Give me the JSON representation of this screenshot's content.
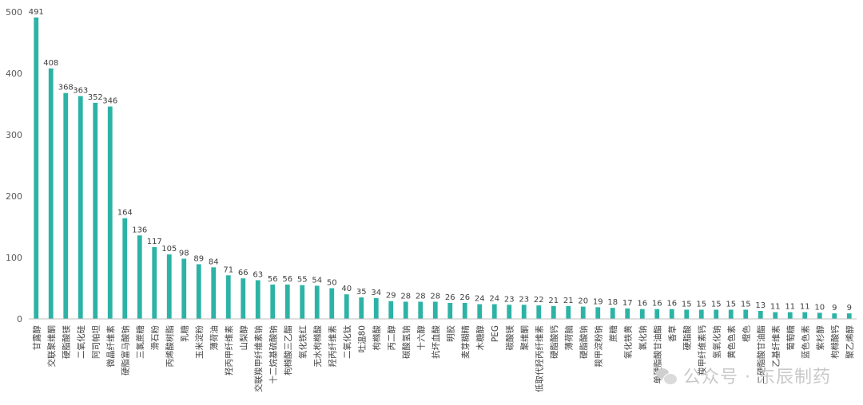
{
  "chart_data": {
    "type": "bar",
    "title": "",
    "xlabel": "",
    "ylabel": "",
    "ylim": [
      0,
      500
    ],
    "yticks": [
      0,
      100,
      200,
      300,
      400,
      500
    ],
    "grid": false,
    "legend": "none",
    "bar_color": "#2db3a6",
    "categories": [
      "甘露醇",
      "交联聚维酮",
      "硬脂酸镁",
      "二氧化硅",
      "阿司帕坦",
      "微晶纤维素",
      "硬脂富马酸钠",
      "三氯蔗糖",
      "滑石粉",
      "丙烯酸树脂",
      "乳糖",
      "玉米淀粉",
      "薄荷油",
      "羟丙甲纤维素",
      "山梨醇",
      "交联羧甲纤维素钠",
      "十二烷基硫酸钠",
      "枸橼酸三乙酯",
      "氧化铁红",
      "无水枸橼酸",
      "羟丙纤维素",
      "二氧化钛",
      "吐温80",
      "枸橼酸",
      "丙二醇",
      "碳酸氢钠",
      "十六醇",
      "抗坏血酸",
      "明胶",
      "麦芽糊精",
      "木糖醇",
      "PEG",
      "碳酸镁",
      "聚维酮",
      "低取代羟丙纤维素",
      "硬脂酸钙",
      "薄荷脑",
      "硬脂酸钠",
      "羧甲淀粉钠",
      "蔗糖",
      "氧化铁黄",
      "氯化钠",
      "单硬脂酸甘油酯",
      "香草",
      "硬脂酸",
      "羧甲纤维素钙",
      "氢氧化钠",
      "黄色色素",
      "橙色",
      "二硬脂酸甘油酯",
      "乙基纤维素",
      "葡萄糖",
      "蓝色色素",
      "紫杉醇",
      "枸橼酸钙",
      "聚乙烯醇"
    ],
    "values": [
      491,
      408,
      368,
      363,
      352,
      346,
      164,
      136,
      117,
      105,
      98,
      89,
      84,
      71,
      66,
      63,
      56,
      56,
      55,
      54,
      50,
      40,
      35,
      34,
      29,
      28,
      28,
      28,
      26,
      26,
      24,
      24,
      23,
      23,
      22,
      21,
      21,
      20,
      19,
      18,
      17,
      16,
      16,
      16,
      15,
      15,
      15,
      15,
      15,
      13,
      11,
      11,
      11,
      10,
      9,
      9
    ]
  },
  "watermark": {
    "text": "公众号 · 东辰制药",
    "icon": "wechat-icon"
  }
}
